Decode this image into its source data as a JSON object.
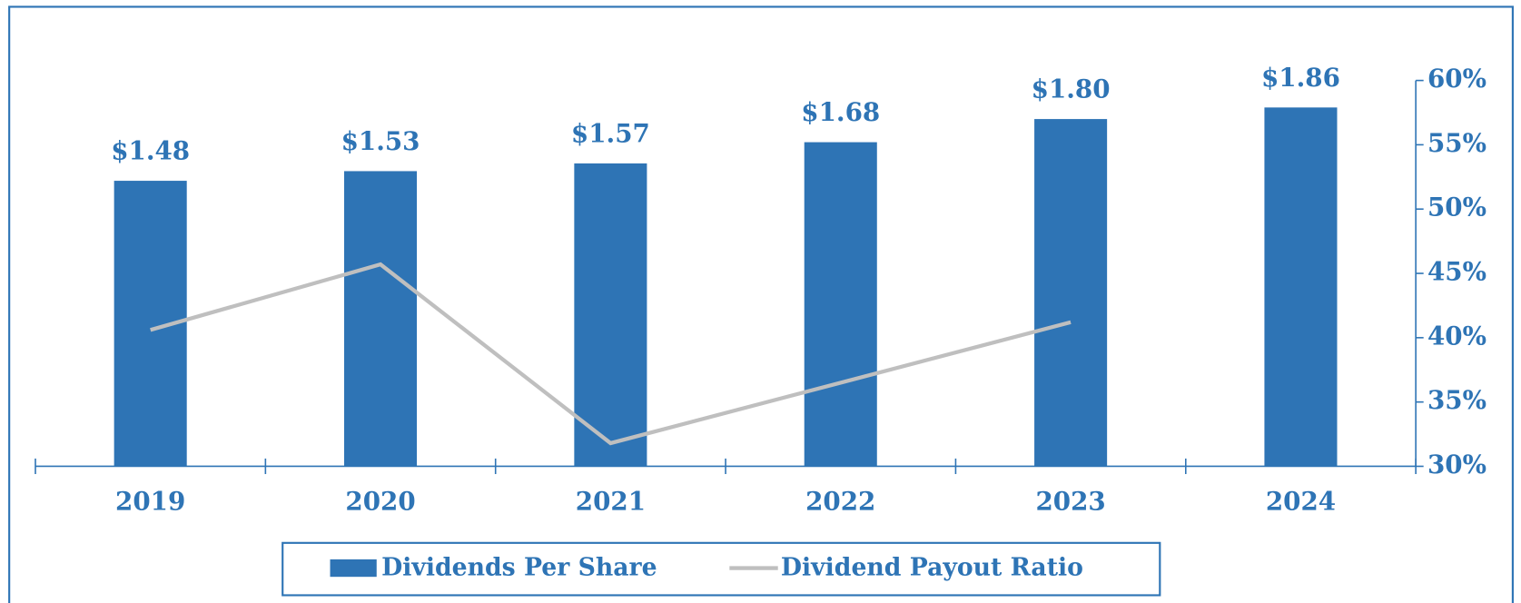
{
  "chart_data": {
    "type": "bar",
    "categories": [
      "2019",
      "2020",
      "2021",
      "2022",
      "2023",
      "2024"
    ],
    "series": [
      {
        "name": "Dividends Per Share",
        "type": "bar",
        "color": "#2e74b5",
        "values": [
          1.48,
          1.53,
          1.57,
          1.68,
          1.8,
          1.86
        ],
        "value_labels": [
          "$1.48",
          "$1.53",
          "$1.57",
          "$1.68",
          "$1.80",
          "$1.86"
        ]
      },
      {
        "name": "Dividend Payout Ratio",
        "type": "line",
        "axis": "y2",
        "color": "#bfbfbf",
        "values": [
          40.6,
          45.7,
          31.8,
          36.5,
          41.2,
          null
        ]
      }
    ],
    "ylim": [
      0,
      2
    ],
    "y2lim": [
      30,
      60
    ],
    "y2ticks": [
      {
        "value": 30,
        "label": "30%"
      },
      {
        "value": 35,
        "label": "35%"
      },
      {
        "value": 40,
        "label": "40%"
      },
      {
        "value": 45,
        "label": "45%"
      },
      {
        "value": 50,
        "label": "50%"
      },
      {
        "value": 55,
        "label": "55%"
      },
      {
        "value": 60,
        "label": "60%"
      }
    ],
    "legend": "bottom"
  }
}
